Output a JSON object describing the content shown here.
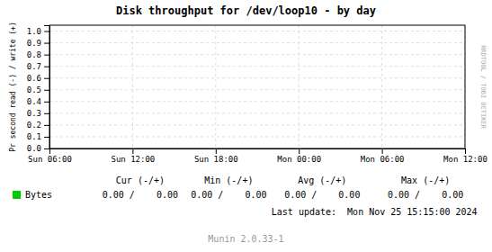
{
  "chart_data": {
    "type": "line",
    "title": "Disk throughput for /dev/loop10 - by day",
    "y_label": "Pr second read (-) / write (+)",
    "categories": [
      "Sun 06:00",
      "Sun 12:00",
      "Sun 18:00",
      "Mon 00:00",
      "Mon 06:00",
      "Mon 12:00"
    ],
    "series": [
      {
        "name": "Bytes",
        "color": "#00cc00",
        "values": [
          null,
          null,
          null,
          null,
          null,
          null
        ]
      }
    ],
    "ylim": [
      0.0,
      1.05
    ],
    "yticks": [
      {
        "value": 0,
        "label": "0.0"
      },
      0.1,
      0.2,
      0.3,
      0.4,
      0.5,
      0.6,
      0.7,
      0.8,
      0.9,
      {
        "value": 1,
        "label": "1.0"
      }
    ],
    "grid": true,
    "annotations": [
      "Cur (-/+)",
      "Min (-/+)",
      "Avg (-/+)",
      "Max (-/+)",
      "0.00 /    0.00",
      "0.00 /    0.00",
      "0.00 /    0.00",
      "0.00 /    0.00",
      "Last update:  Mon Nov 25 15:15:00 2024",
      "Munin 2.0.33-1",
      "RRDTOOL / TOBI OETIKER"
    ]
  }
}
